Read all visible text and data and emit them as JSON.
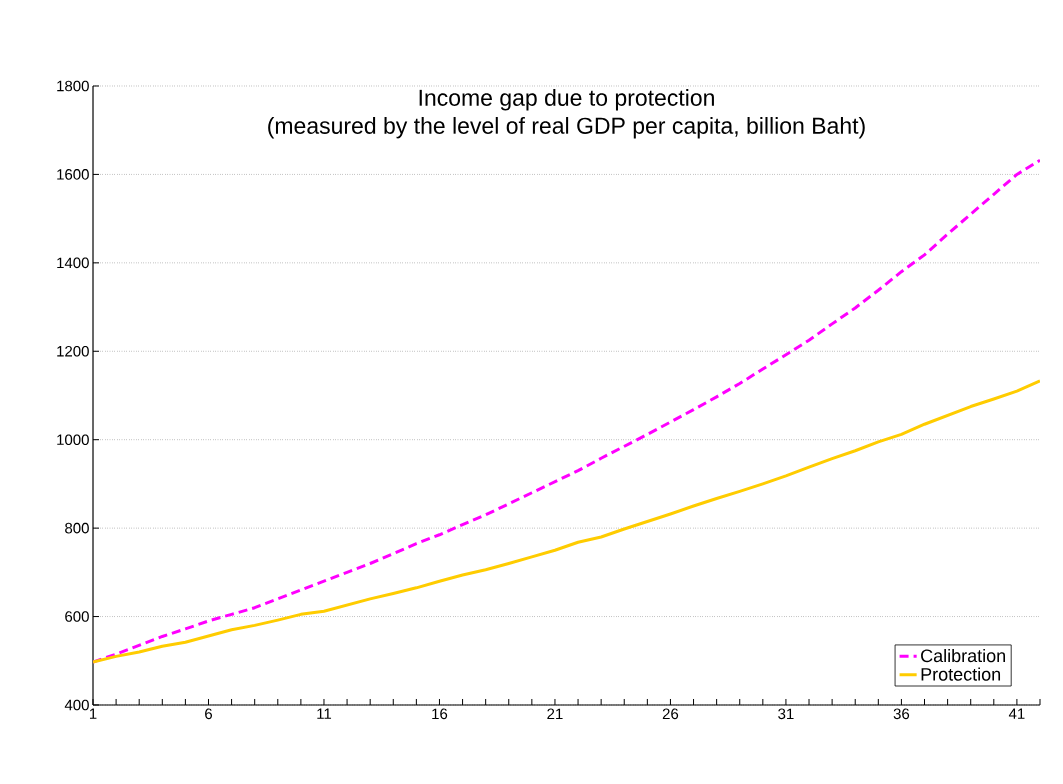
{
  "chart_data": {
    "type": "line",
    "title": "Income gap due to protection",
    "subtitle": "(measured by the level of real GDP per capita, billion Baht)",
    "x": [
      1,
      2,
      3,
      4,
      5,
      6,
      7,
      8,
      9,
      10,
      11,
      12,
      13,
      14,
      15,
      16,
      17,
      18,
      19,
      20,
      21,
      22,
      23,
      24,
      25,
      26,
      27,
      28,
      29,
      30,
      31,
      32,
      33,
      34,
      35,
      36,
      37,
      38,
      39,
      40,
      41,
      42
    ],
    "series": [
      {
        "name": "Calibration",
        "color": "#ff00ff",
        "line_style": "dashed",
        "values": [
          497,
          515,
          535,
          555,
          572,
          590,
          605,
          620,
          640,
          660,
          680,
          700,
          720,
          742,
          765,
          785,
          808,
          830,
          855,
          880,
          905,
          930,
          958,
          985,
          1012,
          1040,
          1068,
          1097,
          1127,
          1160,
          1192,
          1225,
          1262,
          1298,
          1338,
          1380,
          1418,
          1465,
          1510,
          1555,
          1600,
          1632
        ]
      },
      {
        "name": "Protection",
        "color": "#ffcc00",
        "line_style": "solid",
        "values": [
          497,
          510,
          520,
          533,
          542,
          556,
          570,
          580,
          592,
          605,
          612,
          626,
          640,
          652,
          665,
          680,
          694,
          706,
          720,
          735,
          750,
          768,
          780,
          798,
          815,
          832,
          850,
          867,
          883,
          900,
          918,
          938,
          957,
          975,
          995,
          1012,
          1035,
          1055,
          1075,
          1092,
          1110,
          1133
        ]
      }
    ],
    "xlim": [
      1,
      42
    ],
    "xticks": [
      1,
      {
        "value": 2,
        "label": null
      },
      {
        "value": 3,
        "label": null
      },
      {
        "value": 4,
        "label": null
      },
      {
        "value": 5,
        "label": null
      },
      6,
      {
        "value": 7,
        "label": null
      },
      {
        "value": 8,
        "label": null
      },
      {
        "value": 9,
        "label": null
      },
      {
        "value": 10,
        "label": null
      },
      11,
      {
        "value": 12,
        "label": null
      },
      {
        "value": 13,
        "label": null
      },
      {
        "value": 14,
        "label": null
      },
      {
        "value": 15,
        "label": null
      },
      16,
      {
        "value": 17,
        "label": null
      },
      {
        "value": 18,
        "label": null
      },
      {
        "value": 19,
        "label": null
      },
      {
        "value": 20,
        "label": null
      },
      21,
      {
        "value": 22,
        "label": null
      },
      {
        "value": 23,
        "label": null
      },
      {
        "value": 24,
        "label": null
      },
      {
        "value": 25,
        "label": null
      },
      26,
      {
        "value": 27,
        "label": null
      },
      {
        "value": 28,
        "label": null
      },
      {
        "value": 29,
        "label": null
      },
      {
        "value": 30,
        "label": null
      },
      31,
      {
        "value": 32,
        "label": null
      },
      {
        "value": 33,
        "label": null
      },
      {
        "value": 34,
        "label": null
      },
      {
        "value": 35,
        "label": null
      },
      36,
      {
        "value": 37,
        "label": null
      },
      {
        "value": 38,
        "label": null
      },
      {
        "value": 39,
        "label": null
      },
      {
        "value": 40,
        "label": null
      },
      41,
      {
        "value": 42,
        "label": null
      }
    ],
    "ylim": [
      400,
      1800
    ],
    "yticks": [
      400,
      600,
      800,
      1000,
      1200,
      1400,
      1600,
      1800
    ],
    "grid": "y",
    "legend": "bottom right",
    "marker": "none"
  }
}
